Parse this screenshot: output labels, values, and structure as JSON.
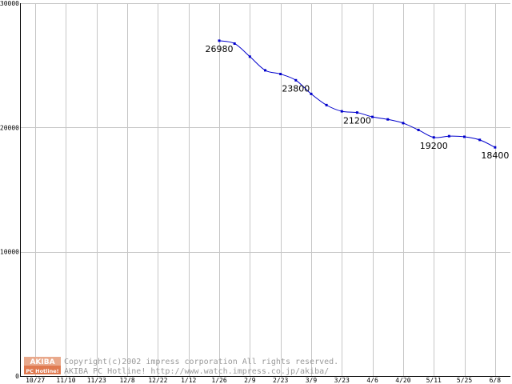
{
  "chart_data": {
    "type": "line",
    "categories": [
      "10/27",
      "11/10",
      "11/23",
      "12/8",
      "12/22",
      "1/12",
      "1/26",
      "2/9",
      "2/23",
      "3/9",
      "3/23",
      "4/6",
      "4/20",
      "5/11",
      "5/25",
      "6/8"
    ],
    "ylim": [
      0,
      30000
    ],
    "y_ticks": [
      "0",
      "10000",
      "20000",
      "30000"
    ],
    "grid": true,
    "series": [
      {
        "x": [
          6.0,
          6.5,
          7.0,
          7.5,
          8.0,
          8.5,
          9.0,
          9.5,
          10.0,
          10.5,
          11.0,
          11.5,
          12.0,
          12.5,
          13.0,
          13.5,
          14.0,
          14.5,
          15.0
        ],
        "values": [
          26980,
          26750,
          25700,
          24600,
          24300,
          23800,
          22700,
          21800,
          21300,
          21200,
          20850,
          20650,
          20350,
          19800,
          19200,
          19300,
          19250,
          19000,
          18400
        ],
        "color": "#0000cc"
      }
    ],
    "data_labels": [
      {
        "index": 0,
        "text": "26980"
      },
      {
        "index": 5,
        "text": "23800"
      },
      {
        "index": 9,
        "text": "21200"
      },
      {
        "index": 14,
        "text": "19200"
      },
      {
        "index": 18,
        "text": "18400"
      }
    ]
  },
  "watermark": {
    "logo_top": "AKIBA",
    "logo_bottom": "PC Hotline!",
    "line1": "Copyright(c)2002 impress corporation All rights reserved.",
    "line2": "AKIBA PC Hotline!  http://www.watch.impress.co.jp/akiba/"
  }
}
